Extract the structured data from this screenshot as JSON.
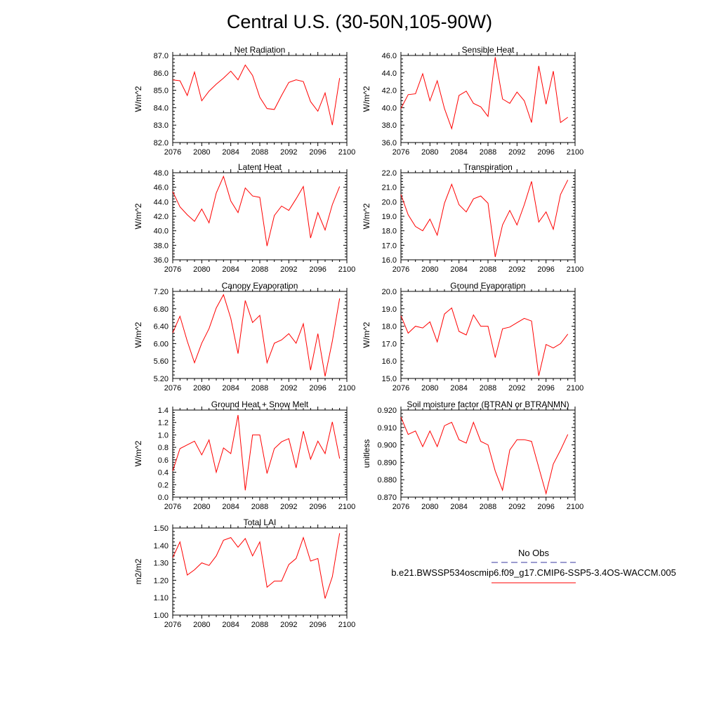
{
  "title": "Central U.S. (30-50N,105-90W)",
  "legend": {
    "obs_label": "No Obs",
    "model_label": "b.e21.BWSSP534oscmip6.f09_g17.CMIP6-SSP5-3.4OS-WACCM.005",
    "obs_color": "#3a3aa0",
    "model_color": "#ff0000"
  },
  "line_color": "#ff0000",
  "chart_data": [
    {
      "type": "line",
      "title": "Net Radiation",
      "ylabel": "W/m^2",
      "xlim": [
        2076,
        2100
      ],
      "ylim": [
        82,
        87
      ],
      "yticks": [
        "82.0",
        "83.0",
        "84.0",
        "85.0",
        "86.0",
        "87.0"
      ],
      "xticks": [
        "2076",
        "2080",
        "2084",
        "2088",
        "2092",
        "2096",
        "2100"
      ],
      "x": [
        2076,
        2077,
        2078,
        2079,
        2080,
        2081,
        2082,
        2083,
        2084,
        2085,
        2086,
        2087,
        2088,
        2089,
        2090,
        2091,
        2092,
        2093,
        2094,
        2095,
        2096,
        2097,
        2098,
        2099
      ],
      "values": [
        85.6,
        85.55,
        84.7,
        86.05,
        84.4,
        84.95,
        85.35,
        85.7,
        86.1,
        85.6,
        86.45,
        85.85,
        84.6,
        83.95,
        83.9,
        84.7,
        85.45,
        85.6,
        85.5,
        84.35,
        83.8,
        84.85,
        83.0,
        85.7
      ]
    },
    {
      "type": "line",
      "title": "Sensible Heat",
      "ylabel": "W/m^2",
      "xlim": [
        2076,
        2100
      ],
      "ylim": [
        36,
        46
      ],
      "yticks": [
        "36.0",
        "38.0",
        "40.0",
        "42.0",
        "44.0",
        "46.0"
      ],
      "xticks": [
        "2076",
        "2080",
        "2084",
        "2088",
        "2092",
        "2096",
        "2100"
      ],
      "x": [
        2076,
        2077,
        2078,
        2079,
        2080,
        2081,
        2082,
        2083,
        2084,
        2085,
        2086,
        2087,
        2088,
        2089,
        2090,
        2091,
        2092,
        2093,
        2094,
        2095,
        2096,
        2097,
        2098,
        2099
      ],
      "values": [
        39.9,
        41.5,
        41.6,
        43.9,
        40.8,
        43.1,
        39.9,
        37.6,
        41.4,
        41.9,
        40.5,
        40.1,
        39.0,
        45.8,
        41.0,
        40.5,
        41.8,
        40.8,
        38.3,
        44.8,
        40.4,
        44.2,
        38.3,
        38.9
      ]
    },
    {
      "type": "line",
      "title": "Latent Heat",
      "ylabel": "W/m^2",
      "xlim": [
        2076,
        2100
      ],
      "ylim": [
        36,
        48
      ],
      "yticks": [
        "36.0",
        "38.0",
        "40.0",
        "42.0",
        "44.0",
        "46.0",
        "48.0"
      ],
      "xticks": [
        "2076",
        "2080",
        "2084",
        "2088",
        "2092",
        "2096",
        "2100"
      ],
      "x": [
        2076,
        2077,
        2078,
        2079,
        2080,
        2081,
        2082,
        2083,
        2084,
        2085,
        2086,
        2087,
        2088,
        2089,
        2090,
        2091,
        2092,
        2093,
        2094,
        2095,
        2096,
        2097,
        2098,
        2099
      ],
      "values": [
        45.4,
        43.3,
        42.2,
        41.3,
        43.0,
        41.1,
        45.2,
        47.5,
        44.1,
        42.5,
        45.9,
        44.8,
        44.6,
        37.9,
        42.1,
        43.4,
        42.8,
        44.4,
        46.1,
        39.0,
        42.5,
        40.1,
        43.6,
        46.1
      ]
    },
    {
      "type": "line",
      "title": "Transpiration",
      "ylabel": "W/m^2",
      "xlim": [
        2076,
        2100
      ],
      "ylim": [
        16,
        22
      ],
      "yticks": [
        "16.0",
        "17.0",
        "18.0",
        "19.0",
        "20.0",
        "21.0",
        "22.0"
      ],
      "xticks": [
        "2076",
        "2080",
        "2084",
        "2088",
        "2092",
        "2096",
        "2100"
      ],
      "x": [
        2076,
        2077,
        2078,
        2079,
        2080,
        2081,
        2082,
        2083,
        2084,
        2085,
        2086,
        2087,
        2088,
        2089,
        2090,
        2091,
        2092,
        2093,
        2094,
        2095,
        2096,
        2097,
        2098,
        2099
      ],
      "values": [
        20.5,
        19.1,
        18.3,
        18.0,
        18.8,
        17.7,
        19.9,
        21.2,
        19.8,
        19.3,
        20.2,
        20.4,
        19.9,
        16.2,
        18.4,
        19.4,
        18.4,
        19.8,
        21.4,
        18.6,
        19.3,
        18.1,
        20.5,
        21.5
      ]
    },
    {
      "type": "line",
      "title": "Canopy Evaporation",
      "ylabel": "W/m^2",
      "xlim": [
        2076,
        2100
      ],
      "ylim": [
        5.1,
        7.2
      ],
      "yticks": [
        "5.20",
        "5.60",
        "6.00",
        "6.40",
        "6.80",
        "7.20"
      ],
      "xticks": [
        "2076",
        "2080",
        "2084",
        "2088",
        "2092",
        "2096",
        "2100"
      ],
      "x": [
        2076,
        2077,
        2078,
        2079,
        2080,
        2081,
        2082,
        2083,
        2084,
        2085,
        2086,
        2087,
        2088,
        2089,
        2090,
        2091,
        2092,
        2093,
        2094,
        2095,
        2096,
        2097,
        2098,
        2099
      ],
      "values": [
        6.2,
        6.6,
        6.0,
        5.48,
        5.95,
        6.3,
        6.8,
        7.12,
        6.55,
        5.7,
        6.98,
        6.45,
        6.62,
        5.48,
        5.95,
        6.03,
        6.18,
        5.95,
        6.42,
        5.3,
        6.18,
        5.15,
        6.0,
        7.03
      ]
    },
    {
      "type": "line",
      "title": "Ground Evaporation",
      "ylabel": "W/m^2",
      "xlim": [
        2076,
        2100
      ],
      "ylim": [
        15,
        20
      ],
      "yticks": [
        "15.0",
        "16.0",
        "17.0",
        "18.0",
        "19.0",
        "20.0"
      ],
      "xticks": [
        "2076",
        "2080",
        "2084",
        "2088",
        "2092",
        "2096",
        "2100"
      ],
      "x": [
        2076,
        2077,
        2078,
        2079,
        2080,
        2081,
        2082,
        2083,
        2084,
        2085,
        2086,
        2087,
        2088,
        2089,
        2090,
        2091,
        2092,
        2093,
        2094,
        2095,
        2096,
        2097,
        2098,
        2099
      ],
      "values": [
        18.6,
        17.6,
        18.0,
        17.9,
        18.25,
        17.1,
        18.7,
        19.05,
        17.7,
        17.5,
        18.65,
        18.0,
        18.0,
        16.2,
        17.85,
        17.95,
        18.2,
        18.45,
        18.3,
        15.15,
        16.95,
        16.75,
        17.0,
        17.55
      ]
    },
    {
      "type": "line",
      "title": "Ground Heat + Snow Melt",
      "ylabel": "W/m^2",
      "xlim": [
        2076,
        2100
      ],
      "ylim": [
        0,
        1.4
      ],
      "yticks": [
        "0.0",
        "0.2",
        "0.4",
        "0.6",
        "0.8",
        "1.0",
        "1.2",
        "1.4"
      ],
      "xticks": [
        "2076",
        "2080",
        "2084",
        "2088",
        "2092",
        "2096",
        "2100"
      ],
      "x": [
        2076,
        2077,
        2078,
        2079,
        2080,
        2081,
        2082,
        2083,
        2084,
        2085,
        2086,
        2087,
        2088,
        2089,
        2090,
        2091,
        2092,
        2093,
        2094,
        2095,
        2096,
        2097,
        2098,
        2099
      ],
      "values": [
        0.42,
        0.78,
        0.84,
        0.9,
        0.68,
        0.92,
        0.4,
        0.79,
        0.7,
        1.32,
        0.11,
        1.0,
        1.0,
        0.38,
        0.78,
        0.89,
        0.94,
        0.47,
        1.06,
        0.61,
        0.9,
        0.7,
        1.21,
        0.62
      ]
    },
    {
      "type": "line",
      "title": "Soil moisture factor (BTRAN or BTRANMN)",
      "ylabel": "unitless",
      "xlim": [
        2076,
        2100
      ],
      "ylim": [
        0.87,
        0.92
      ],
      "yticks": [
        "0.870",
        "0.880",
        "0.890",
        "0.900",
        "0.910",
        "0.920"
      ],
      "xticks": [
        "2076",
        "2080",
        "2084",
        "2088",
        "2092",
        "2096",
        "2100"
      ],
      "x": [
        2076,
        2077,
        2078,
        2079,
        2080,
        2081,
        2082,
        2083,
        2084,
        2085,
        2086,
        2087,
        2088,
        2089,
        2090,
        2091,
        2092,
        2093,
        2094,
        2095,
        2096,
        2097,
        2098,
        2099
      ],
      "values": [
        0.916,
        0.906,
        0.908,
        0.899,
        0.908,
        0.899,
        0.911,
        0.913,
        0.903,
        0.901,
        0.913,
        0.902,
        0.9,
        0.885,
        0.874,
        0.897,
        0.903,
        0.903,
        0.902,
        0.887,
        0.872,
        0.889,
        0.897,
        0.906
      ]
    },
    {
      "type": "line",
      "title": "Total LAI",
      "ylabel": "m2/m2",
      "xlim": [
        2076,
        2100
      ],
      "ylim": [
        1.0,
        1.5
      ],
      "yticks": [
        "1.00",
        "1.10",
        "1.20",
        "1.30",
        "1.40",
        "1.50"
      ],
      "xticks": [
        "2076",
        "2080",
        "2084",
        "2088",
        "2092",
        "2096",
        "2100"
      ],
      "x": [
        2076,
        2077,
        2078,
        2079,
        2080,
        2081,
        2082,
        2083,
        2084,
        2085,
        2086,
        2087,
        2088,
        2089,
        2090,
        2091,
        2092,
        2093,
        2094,
        2095,
        2096,
        2097,
        2098,
        2099
      ],
      "values": [
        1.33,
        1.42,
        1.23,
        1.26,
        1.3,
        1.285,
        1.34,
        1.43,
        1.445,
        1.39,
        1.44,
        1.34,
        1.42,
        1.16,
        1.195,
        1.195,
        1.29,
        1.325,
        1.445,
        1.31,
        1.325,
        1.095,
        1.22,
        1.47
      ]
    }
  ]
}
